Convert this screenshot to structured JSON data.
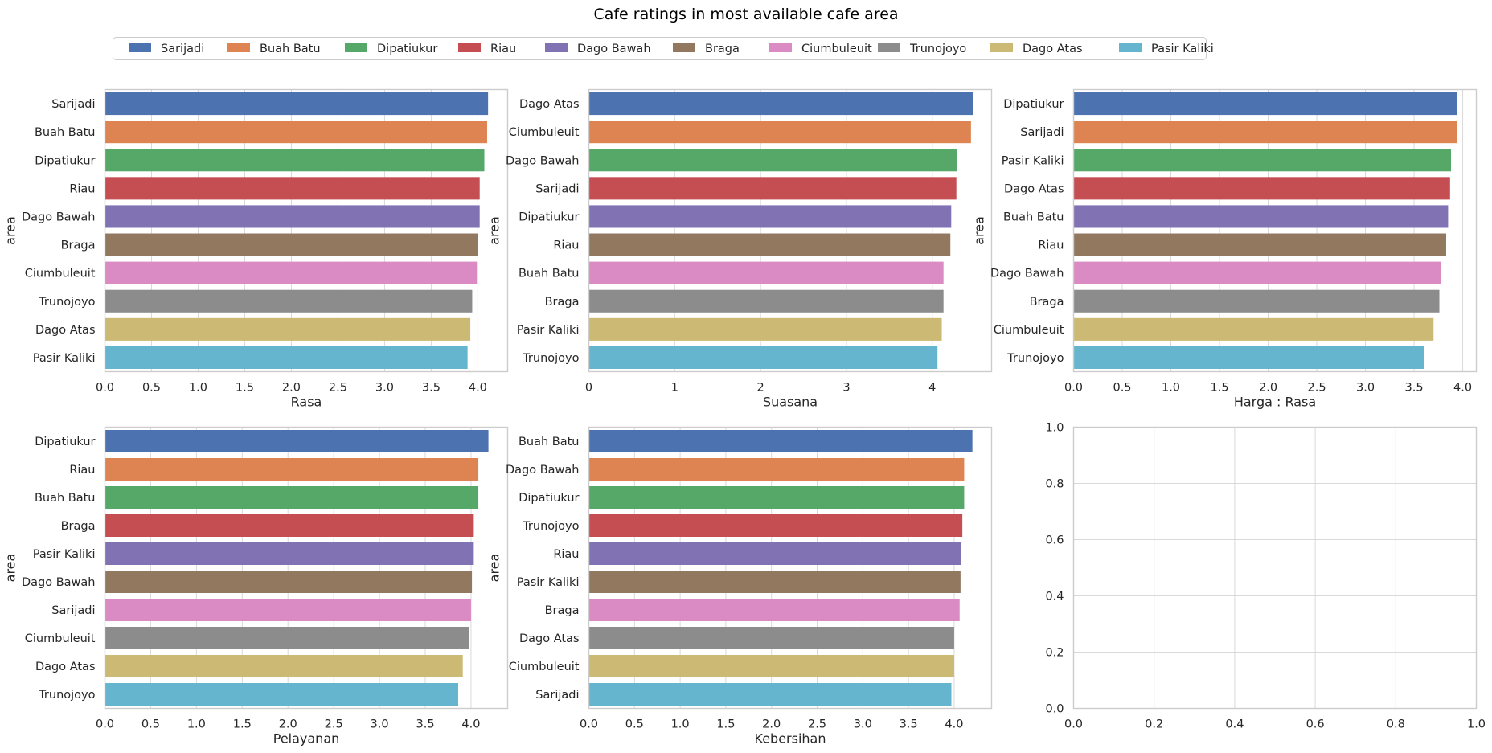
{
  "figure": {
    "title": "Cafe ratings in most available cafe area"
  },
  "legend": {
    "entries": [
      {
        "label": "Sarijadi",
        "color": "#4c72b0"
      },
      {
        "label": "Buah Batu",
        "color": "#dd8452"
      },
      {
        "label": "Dipatiukur",
        "color": "#55a868"
      },
      {
        "label": "Riau",
        "color": "#c44e52"
      },
      {
        "label": "Dago Bawah",
        "color": "#8172b3"
      },
      {
        "label": "Braga",
        "color": "#937860"
      },
      {
        "label": "Ciumbuleuit",
        "color": "#da8bc3"
      },
      {
        "label": "Trunojoyo",
        "color": "#8c8c8c"
      },
      {
        "label": "Dago Atas",
        "color": "#ccb974"
      },
      {
        "label": "Pasir Kaliki",
        "color": "#64b5cd"
      }
    ],
    "placement": "top-center"
  },
  "palette": [
    "#4c72b0",
    "#dd8452",
    "#55a868",
    "#c44e52",
    "#8172b3",
    "#937860",
    "#da8bc3",
    "#8c8c8c",
    "#ccb974",
    "#64b5cd"
  ],
  "chart_data": [
    {
      "type": "bar",
      "orientation": "horizontal",
      "xlabel": "Rasa",
      "ylabel": "area",
      "categories": [
        "Sarijadi",
        "Buah Batu",
        "Dipatiukur",
        "Riau",
        "Dago Bawah",
        "Braga",
        "Ciumbuleuit",
        "Trunojoyo",
        "Dago Atas",
        "Pasir Kaliki"
      ],
      "values": [
        4.11,
        4.1,
        4.07,
        4.02,
        4.02,
        4.0,
        3.99,
        3.94,
        3.92,
        3.89
      ],
      "xlim": [
        0,
        4.32
      ],
      "xticks": [
        "0.0",
        "0.5",
        "1.0",
        "1.5",
        "2.0",
        "2.5",
        "3.0",
        "3.5",
        "4.0"
      ],
      "grid": true
    },
    {
      "type": "bar",
      "orientation": "horizontal",
      "xlabel": "Suasana",
      "ylabel": "area",
      "categories": [
        "Dago Atas",
        "Ciumbuleuit",
        "Dago Bawah",
        "Sarijadi",
        "Dipatiukur",
        "Riau",
        "Buah Batu",
        "Braga",
        "Pasir Kaliki",
        "Trunojoyo"
      ],
      "values": [
        4.47,
        4.45,
        4.29,
        4.28,
        4.22,
        4.21,
        4.13,
        4.13,
        4.11,
        4.06
      ],
      "xlim": [
        0,
        4.69
      ],
      "xticks": [
        "0",
        "1",
        "2",
        "3",
        "4"
      ],
      "grid": true
    },
    {
      "type": "bar",
      "orientation": "horizontal",
      "xlabel": "Harga : Rasa",
      "ylabel": "area",
      "categories": [
        "Dipatiukur",
        "Sarijadi",
        "Pasir Kaliki",
        "Dago Atas",
        "Buah Batu",
        "Riau",
        "Dago Bawah",
        "Braga",
        "Ciumbuleuit",
        "Trunojoyo"
      ],
      "values": [
        3.94,
        3.94,
        3.88,
        3.87,
        3.85,
        3.83,
        3.78,
        3.76,
        3.7,
        3.6
      ],
      "xlim": [
        0,
        4.14
      ],
      "xticks": [
        "0.0",
        "0.5",
        "1.0",
        "1.5",
        "2.0",
        "2.5",
        "3.0",
        "3.5",
        "4.0"
      ],
      "grid": true
    },
    {
      "type": "bar",
      "orientation": "horizontal",
      "xlabel": "Pelayanan",
      "ylabel": "area",
      "categories": [
        "Dipatiukur",
        "Riau",
        "Buah Batu",
        "Braga",
        "Pasir Kaliki",
        "Dago Bawah",
        "Sarijadi",
        "Ciumbuleuit",
        "Dago Atas",
        "Trunojoyo"
      ],
      "values": [
        4.19,
        4.08,
        4.08,
        4.03,
        4.03,
        4.01,
        4.0,
        3.98,
        3.91,
        3.86
      ],
      "xlim": [
        0,
        4.4
      ],
      "xticks": [
        "0.0",
        "0.5",
        "1.0",
        "1.5",
        "2.0",
        "2.5",
        "3.0",
        "3.5",
        "4.0"
      ],
      "grid": true
    },
    {
      "type": "bar",
      "orientation": "horizontal",
      "xlabel": "Kebersihan",
      "ylabel": "area",
      "categories": [
        "Buah Batu",
        "Dago Bawah",
        "Dipatiukur",
        "Trunojoyo",
        "Riau",
        "Pasir Kaliki",
        "Braga",
        "Dago Atas",
        "Ciumbuleuit",
        "Sarijadi"
      ],
      "values": [
        4.2,
        4.11,
        4.11,
        4.09,
        4.08,
        4.07,
        4.06,
        4.0,
        4.0,
        3.97
      ],
      "xlim": [
        0,
        4.41
      ],
      "xticks": [
        "0.0",
        "0.5",
        "1.0",
        "1.5",
        "2.0",
        "2.5",
        "3.0",
        "3.5",
        "4.0"
      ],
      "grid": true
    },
    {
      "type": "empty",
      "xlim": [
        0,
        1
      ],
      "ylim": [
        0,
        1
      ],
      "xticks": [
        "0.0",
        "0.2",
        "0.4",
        "0.6",
        "0.8",
        "1.0"
      ],
      "yticks": [
        "0.0",
        "0.2",
        "0.4",
        "0.6",
        "0.8",
        "1.0"
      ],
      "grid": true
    }
  ]
}
